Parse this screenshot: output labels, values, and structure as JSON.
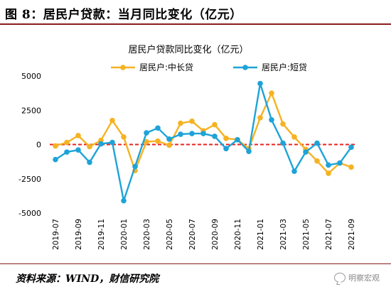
{
  "figure": {
    "title": "图 8：居民户贷款：当月同比变化（亿元）",
    "source": "资料来源：WIND，财信研究院",
    "watermark": "明察宏观"
  },
  "colors": {
    "series_long": "#f5b223",
    "series_short": "#1ea3d8",
    "zero_line": "#e8231f",
    "rule": "#8a1c1c"
  },
  "chart_data": {
    "type": "line",
    "title": "居民户贷款同比变化（亿元）",
    "ylim": [
      -5000,
      5000
    ],
    "yticks": [
      5000,
      2500,
      0,
      -2500,
      -5000
    ],
    "ytick_labels": [
      "5000",
      "2500",
      "0",
      "-2500",
      "-5000"
    ],
    "x": [
      "2019-07",
      "2019-08",
      "2019-09",
      "2019-10",
      "2019-11",
      "2019-12",
      "2020-01",
      "2020-02",
      "2020-03",
      "2020-04",
      "2020-05",
      "2020-06",
      "2020-07",
      "2020-08",
      "2020-09",
      "2020-10",
      "2020-11",
      "2020-12",
      "2021-01",
      "2021-02",
      "2021-03",
      "2021-04",
      "2021-05",
      "2021-06",
      "2021-07",
      "2021-08",
      "2021-09"
    ],
    "xtick_labels": [
      "2019-07",
      "2019-09",
      "2019-11",
      "2020-01",
      "2020-03",
      "2020-05",
      "2020-07",
      "2020-09",
      "2020-11",
      "2021-01",
      "2021-03",
      "2021-05",
      "2021-07",
      "2021-09"
    ],
    "legend_position": "top",
    "series": [
      {
        "name": "居民户:中长贷",
        "color_key": "series_long",
        "values": [
          -100,
          150,
          650,
          -150,
          300,
          1750,
          550,
          -1900,
          200,
          250,
          -50,
          1550,
          1700,
          1000,
          1450,
          450,
          350,
          -300,
          1950,
          3750,
          1500,
          550,
          -350,
          -1200,
          -2100,
          -1350,
          -1650
        ]
      },
      {
        "name": "居民户:短贷",
        "color_key": "series_short",
        "values": [
          -1100,
          -550,
          -400,
          -1300,
          50,
          150,
          -4100,
          -1600,
          850,
          1200,
          400,
          750,
          800,
          800,
          600,
          -300,
          350,
          -500,
          4450,
          1800,
          100,
          -1950,
          -550,
          100,
          -1500,
          -1350,
          -200
        ]
      }
    ]
  }
}
